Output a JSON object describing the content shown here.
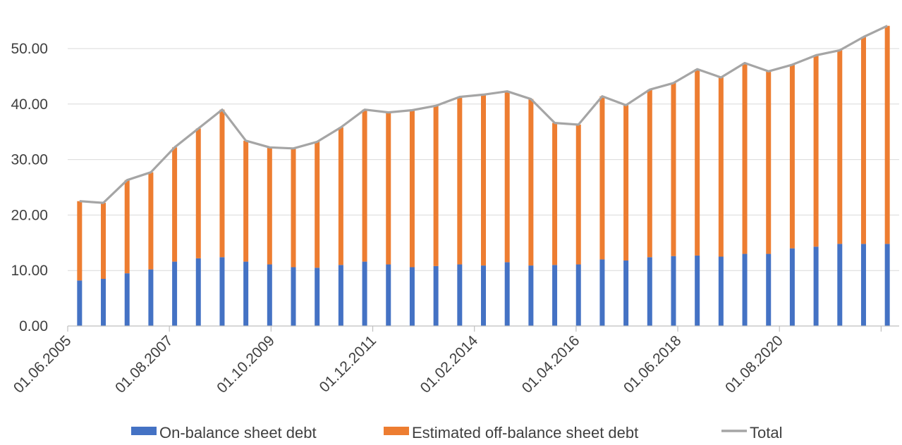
{
  "chart_data": {
    "type": "bar",
    "stacked": true,
    "x_tick_labels": [
      "01.06.2005",
      "01.08.2007",
      "01.10.2009",
      "01.12.2011",
      "01.02.2014",
      "01.04.2016",
      "01.06.2018",
      "01.08.2020"
    ],
    "y_tick_labels": [
      "0.00",
      "10.00",
      "20.00",
      "30.00",
      "40.00",
      "50.00"
    ],
    "ylim": [
      0,
      55
    ],
    "gridlines": true,
    "legend_position": "bottom",
    "series": [
      {
        "name": "On-balance sheet debt",
        "type": "bar",
        "color": "#4472C4",
        "values": [
          8.2,
          8.5,
          9.5,
          10.2,
          11.6,
          12.2,
          12.4,
          11.6,
          11.1,
          10.6,
          10.5,
          11.0,
          11.6,
          11.1,
          10.6,
          10.8,
          11.1,
          10.9,
          11.5,
          10.9,
          11.0,
          11.1,
          12.0,
          11.8,
          12.4,
          12.6,
          12.7,
          12.5,
          13.0,
          13.0,
          14.0,
          14.3,
          14.8,
          14.8,
          14.8
        ]
      },
      {
        "name": "Estimated off-balance sheet debt",
        "type": "bar",
        "color": "#ED7D31",
        "values": [
          14.3,
          13.7,
          16.8,
          17.5,
          20.6,
          23.4,
          26.6,
          21.8,
          21.1,
          21.4,
          22.7,
          24.8,
          27.4,
          27.4,
          28.3,
          28.9,
          30.2,
          30.8,
          30.8,
          30.0,
          25.6,
          25.2,
          29.4,
          28.0,
          30.2,
          31.2,
          33.6,
          32.3,
          34.4,
          32.9,
          33.1,
          34.5,
          34.9,
          37.3,
          39.3
        ]
      },
      {
        "name": "Total",
        "type": "line",
        "color": "#A5A5A5",
        "values": [
          22.5,
          22.2,
          26.3,
          27.7,
          32.2,
          35.6,
          39.0,
          33.4,
          32.2,
          32.0,
          33.2,
          35.8,
          39.0,
          38.5,
          38.9,
          39.7,
          41.3,
          41.7,
          42.3,
          40.9,
          36.6,
          36.3,
          41.4,
          39.8,
          42.6,
          43.8,
          46.3,
          44.8,
          47.4,
          45.9,
          47.1,
          48.8,
          49.7,
          52.1,
          54.1
        ]
      }
    ]
  }
}
